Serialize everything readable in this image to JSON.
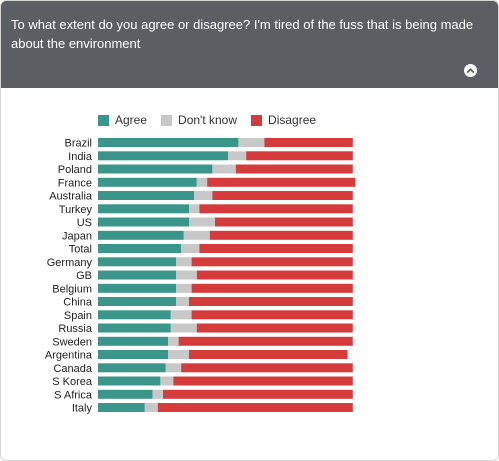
{
  "header": {
    "question": "To what extent do you agree or disagree? I'm tired of the fuss that is being made about the environment",
    "collapse_icon": "chevron-up-icon"
  },
  "colors": {
    "header_bg": "#5b5f64",
    "agree": "#3a968a",
    "dont_know": "#c8c8c8",
    "disagree": "#d63b3b"
  },
  "chart_data": {
    "type": "bar",
    "orientation": "horizontal",
    "stacked": true,
    "legend_position": "top",
    "grid": false,
    "categories": [
      "Brazil",
      "India",
      "Poland",
      "France",
      "Australia",
      "Turkey",
      "US",
      "Japan",
      "Total",
      "Germany",
      "GB",
      "Belgium",
      "China",
      "Spain",
      "Russia",
      "Sweden",
      "Argentina",
      "Canada",
      "S Korea",
      "S Africa",
      "Italy"
    ],
    "series": [
      {
        "name": "Agree",
        "values": [
          54,
          50,
          44,
          38,
          37,
          35,
          35,
          33,
          32,
          30,
          30,
          30,
          30,
          28,
          28,
          27,
          27,
          26,
          24,
          21,
          18
        ]
      },
      {
        "name": "Don't know",
        "values": [
          10,
          7,
          9,
          4,
          7,
          4,
          10,
          10,
          7,
          6,
          8,
          6,
          5,
          8,
          10,
          4,
          8,
          6,
          5,
          4,
          5
        ]
      },
      {
        "name": "Disagree",
        "values": [
          34,
          41,
          45,
          57,
          54,
          59,
          53,
          55,
          59,
          62,
          60,
          62,
          63,
          62,
          60,
          67,
          61,
          66,
          69,
          73,
          75
        ]
      }
    ]
  }
}
